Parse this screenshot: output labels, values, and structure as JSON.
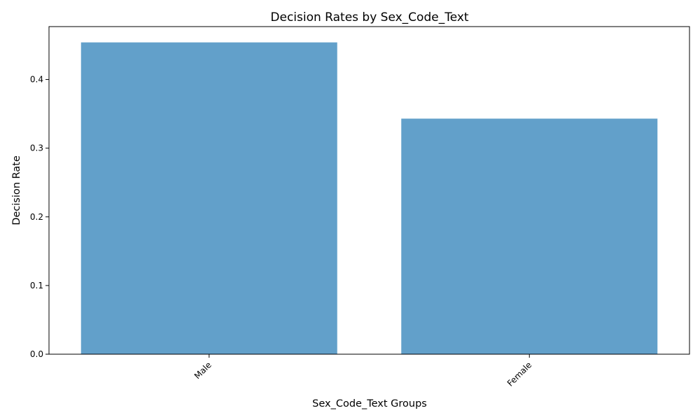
{
  "chart_data": {
    "type": "bar",
    "title": "Decision Rates by Sex_Code_Text",
    "xlabel": "Sex_Code_Text Groups",
    "ylabel": "Decision Rate",
    "categories": [
      "Male",
      "Female"
    ],
    "values": [
      0.454,
      0.343
    ],
    "ylim": [
      0,
      0.477
    ],
    "yticks": [
      0.0,
      0.1,
      0.2,
      0.3,
      0.4
    ],
    "ytick_labels": [
      "0.0",
      "0.1",
      "0.2",
      "0.3",
      "0.4"
    ],
    "grid": false,
    "bar_color": "#62a0ca"
  }
}
